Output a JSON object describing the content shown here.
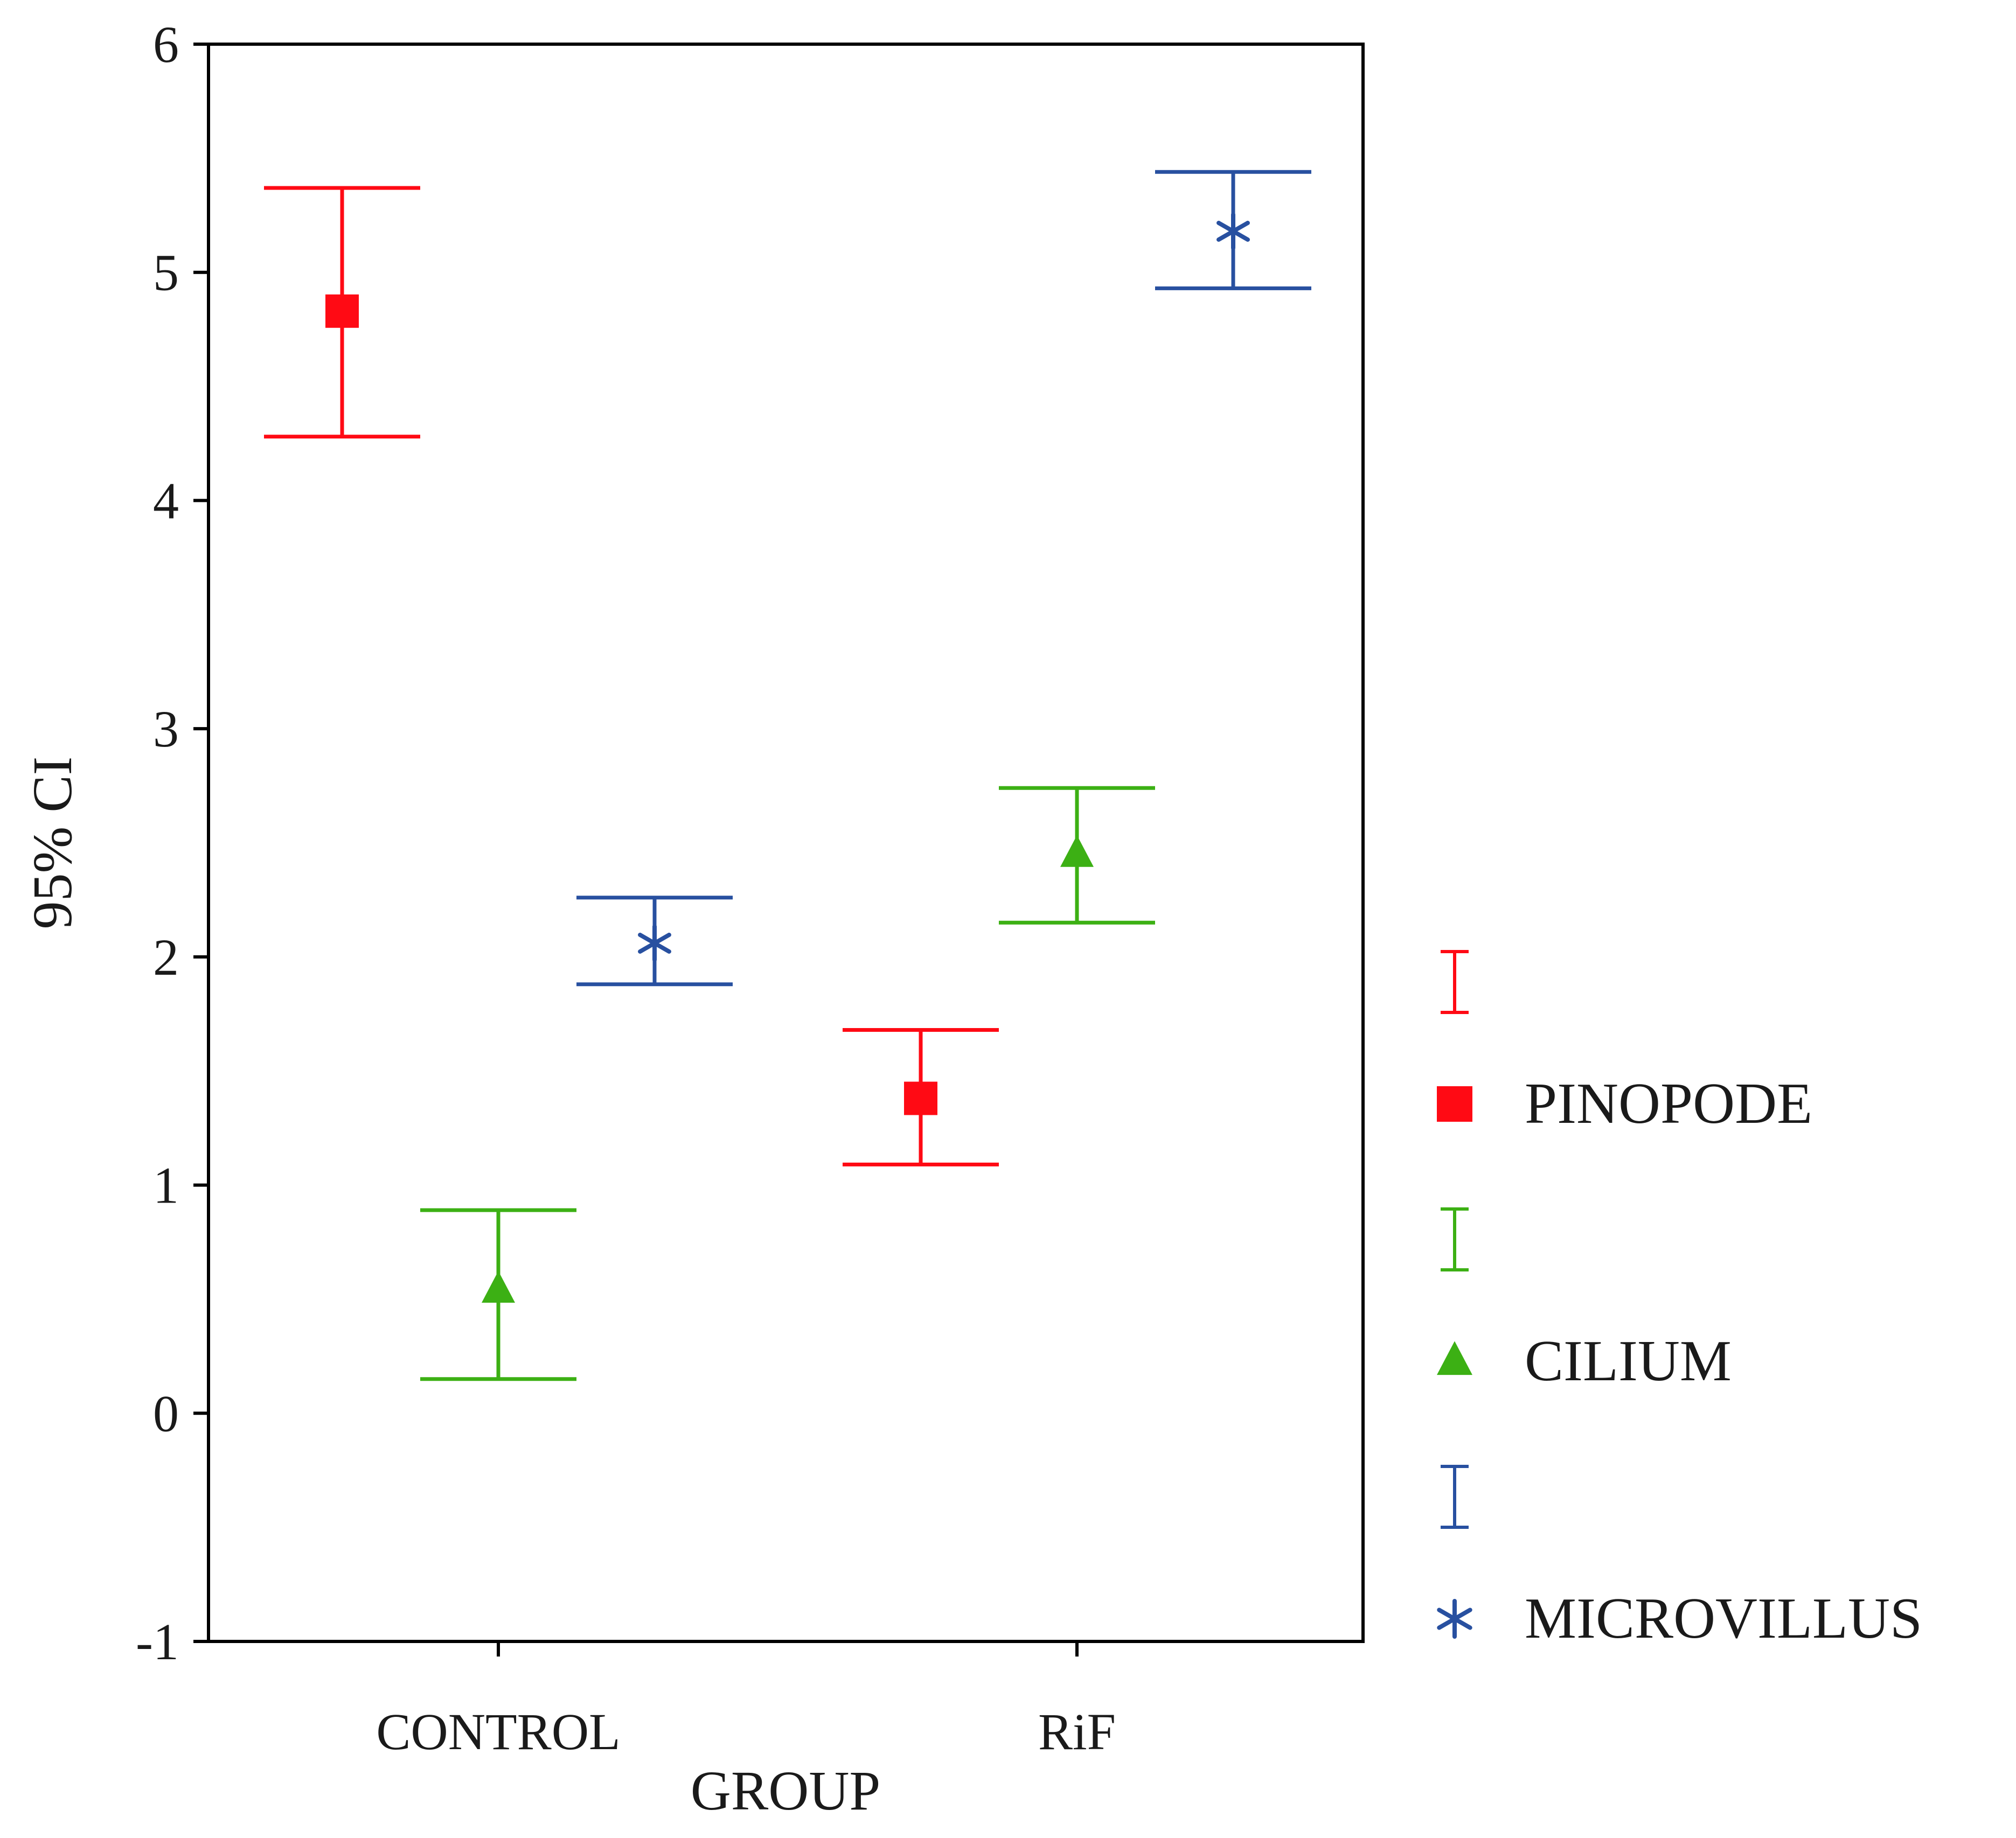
{
  "chart_data": {
    "type": "errorbar",
    "title": "",
    "xlabel": "GROUP",
    "ylabel": "95% CI",
    "ylim": [
      -1,
      6
    ],
    "yticks": [
      -1,
      0,
      1,
      2,
      3,
      4,
      5,
      6
    ],
    "categories": [
      "CONTROL",
      "RiF"
    ],
    "series": [
      {
        "name": "PINOPODE",
        "color": "#ff0a14",
        "marker": "square",
        "points": [
          {
            "category": "CONTROL",
            "mean": 4.83,
            "lower": 4.28,
            "upper": 5.37
          },
          {
            "category": "RiF",
            "mean": 1.38,
            "lower": 1.09,
            "upper": 1.68
          }
        ]
      },
      {
        "name": "CILIUM",
        "color": "#3cb014",
        "marker": "triangle",
        "points": [
          {
            "category": "CONTROL",
            "mean": 0.54,
            "lower": 0.15,
            "upper": 0.89
          },
          {
            "category": "RiF",
            "mean": 2.45,
            "lower": 2.15,
            "upper": 2.74
          }
        ]
      },
      {
        "name": "MICROVILLUS",
        "color": "#2850a0",
        "marker": "asterisk",
        "points": [
          {
            "category": "CONTROL",
            "mean": 2.06,
            "lower": 1.88,
            "upper": 2.26
          },
          {
            "category": "RiF",
            "mean": 5.18,
            "lower": 4.93,
            "upper": 5.44
          }
        ]
      }
    ],
    "legend_position": "right"
  }
}
